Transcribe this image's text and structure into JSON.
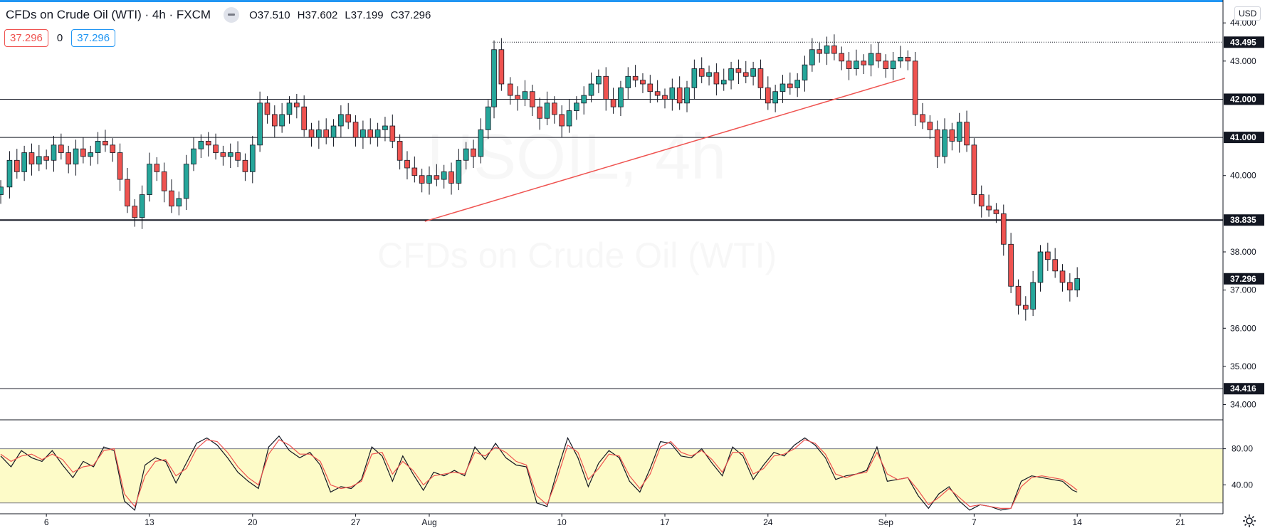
{
  "header": {
    "symbol": "CFDs on Crude Oil (WTI) · 4h · FXCM",
    "open_label": "O",
    "open": "37.510",
    "high_label": "H",
    "high": "37.602",
    "low_label": "L",
    "low": "37.199",
    "close_label": "C",
    "close": "37.296"
  },
  "trade": {
    "sell_price": "37.296",
    "spread": "0",
    "buy_price": "37.296"
  },
  "currency_button": "USD",
  "watermark": {
    "symbol": "USOIL, 4h",
    "description": "CFDs on Crude Oil (WTI)"
  },
  "colors": {
    "up": "#26a69a",
    "down": "#ef5350",
    "wick": "#131722",
    "trendline": "#ef5350",
    "stoch_k": "#131722",
    "stoch_d": "#ef5350",
    "stoch_band": "#fdfbc8",
    "accent": "#2196f3"
  },
  "chart_data": [
    {
      "type": "candlestick",
      "timeframe": "4h",
      "y_range": [
        33.6,
        44.6
      ],
      "y_ticks": [
        "44.000",
        "43.000",
        "40.000",
        "38.000",
        "37.000",
        "36.000",
        "35.000",
        "34.000"
      ],
      "x_ticks": [
        {
          "label": "6",
          "x": 6
        },
        {
          "label": "13",
          "x": 13
        },
        {
          "label": "20",
          "x": 20
        },
        {
          "label": "27",
          "x": 27
        },
        {
          "label": "Aug",
          "x": 32
        },
        {
          "label": "10",
          "x": 41
        },
        {
          "label": "17",
          "x": 48
        },
        {
          "label": "24",
          "x": 55
        },
        {
          "label": "Sep",
          "x": 63
        },
        {
          "label": "7",
          "x": 69
        },
        {
          "label": "14",
          "x": 76
        },
        {
          "label": "21",
          "x": 83
        }
      ],
      "x_range": [
        2.85,
        85.9
      ],
      "horizontal_levels": [
        {
          "value": 42.0,
          "label": "42.000",
          "style": "solid"
        },
        {
          "value": 41.0,
          "label": "41.000",
          "style": "solid"
        },
        {
          "value": 38.835,
          "label": "38.835",
          "style": "solid"
        },
        {
          "value": 34.416,
          "label": "34.416",
          "style": "solid"
        },
        {
          "value": 43.495,
          "label": "43.495",
          "style": "dotted",
          "from_x": 36.3
        }
      ],
      "last_price": {
        "value": 37.296,
        "label": "37.296"
      },
      "trendline": {
        "from": [
          31.7,
          38.8
        ],
        "to": [
          64.3,
          42.55
        ]
      },
      "key_points": [
        [
          2.9,
          39.7
        ],
        [
          3.5,
          40.4
        ],
        [
          4.0,
          40.1
        ],
        [
          4.5,
          40.6
        ],
        [
          5.0,
          40.3
        ],
        [
          5.5,
          40.5
        ],
        [
          6.0,
          40.4
        ],
        [
          6.5,
          40.8
        ],
        [
          7.0,
          40.6
        ],
        [
          7.5,
          40.3
        ],
        [
          8.0,
          40.7
        ],
        [
          8.5,
          40.5
        ],
        [
          9.0,
          40.6
        ],
        [
          9.5,
          40.9
        ],
        [
          10.0,
          40.8
        ],
        [
          10.5,
          40.6
        ],
        [
          11.0,
          39.9
        ],
        [
          11.5,
          39.2
        ],
        [
          12.0,
          38.9
        ],
        [
          12.5,
          39.5
        ],
        [
          13.0,
          40.3
        ],
        [
          13.5,
          40.1
        ],
        [
          14.0,
          39.6
        ],
        [
          14.5,
          39.2
        ],
        [
          15.0,
          39.4
        ],
        [
          15.5,
          40.3
        ],
        [
          16.0,
          40.7
        ],
        [
          16.5,
          40.9
        ],
        [
          17.0,
          40.8
        ],
        [
          17.5,
          40.6
        ],
        [
          18.0,
          40.5
        ],
        [
          18.5,
          40.6
        ],
        [
          19.0,
          40.4
        ],
        [
          19.5,
          40.1
        ],
        [
          20.0,
          40.8
        ],
        [
          20.5,
          41.9
        ],
        [
          21.0,
          41.6
        ],
        [
          21.5,
          41.3
        ],
        [
          22.0,
          41.6
        ],
        [
          22.5,
          41.9
        ],
        [
          23.0,
          41.8
        ],
        [
          23.5,
          41.2
        ],
        [
          24.0,
          41.0
        ],
        [
          24.5,
          41.2
        ],
        [
          25.0,
          41.0
        ],
        [
          25.5,
          41.3
        ],
        [
          26.0,
          41.6
        ],
        [
          26.5,
          41.4
        ],
        [
          27.0,
          41.0
        ],
        [
          27.5,
          41.2
        ],
        [
          28.0,
          41.0
        ],
        [
          28.5,
          41.2
        ],
        [
          29.0,
          41.3
        ],
        [
          29.5,
          40.9
        ],
        [
          30.0,
          40.4
        ],
        [
          30.5,
          40.2
        ],
        [
          31.0,
          40.0
        ],
        [
          31.5,
          39.8
        ],
        [
          32.0,
          40.0
        ],
        [
          32.5,
          39.9
        ],
        [
          33.0,
          40.1
        ],
        [
          33.5,
          39.8
        ],
        [
          34.0,
          40.4
        ],
        [
          34.5,
          40.7
        ],
        [
          35.0,
          40.5
        ],
        [
          35.5,
          41.2
        ],
        [
          36.0,
          41.8
        ],
        [
          36.4,
          43.3
        ],
        [
          36.9,
          42.4
        ],
        [
          37.5,
          42.1
        ],
        [
          38.0,
          42.0
        ],
        [
          38.5,
          42.2
        ],
        [
          39.0,
          41.8
        ],
        [
          39.5,
          41.5
        ],
        [
          40.0,
          41.9
        ],
        [
          40.5,
          41.6
        ],
        [
          41.0,
          41.3
        ],
        [
          41.5,
          41.7
        ],
        [
          42.0,
          41.9
        ],
        [
          42.5,
          42.1
        ],
        [
          43.0,
          42.4
        ],
        [
          43.5,
          42.6
        ],
        [
          44.0,
          42.0
        ],
        [
          44.5,
          41.8
        ],
        [
          45.0,
          42.3
        ],
        [
          45.5,
          42.6
        ],
        [
          46.0,
          42.5
        ],
        [
          46.5,
          42.4
        ],
        [
          47.0,
          42.2
        ],
        [
          47.5,
          42.1
        ],
        [
          48.0,
          42.0
        ],
        [
          48.5,
          42.3
        ],
        [
          49.0,
          41.9
        ],
        [
          49.5,
          42.3
        ],
        [
          50.0,
          42.8
        ],
        [
          50.5,
          42.6
        ],
        [
          51.0,
          42.7
        ],
        [
          51.5,
          42.4
        ],
        [
          52.0,
          42.5
        ],
        [
          52.5,
          42.8
        ],
        [
          53.0,
          42.7
        ],
        [
          53.5,
          42.6
        ],
        [
          54.0,
          42.8
        ],
        [
          54.5,
          42.3
        ],
        [
          55.0,
          41.9
        ],
        [
          55.5,
          42.2
        ],
        [
          56.0,
          42.4
        ],
        [
          56.5,
          42.3
        ],
        [
          57.0,
          42.5
        ],
        [
          57.5,
          42.9
        ],
        [
          58.0,
          43.3
        ],
        [
          58.5,
          43.2
        ],
        [
          59.0,
          43.4
        ],
        [
          59.5,
          43.2
        ],
        [
          60.0,
          43.0
        ],
        [
          60.5,
          42.8
        ],
        [
          61.0,
          43.0
        ],
        [
          61.5,
          42.9
        ],
        [
          62.0,
          43.2
        ],
        [
          62.5,
          43.0
        ],
        [
          63.0,
          42.8
        ],
        [
          63.5,
          43.0
        ],
        [
          64.0,
          43.1
        ],
        [
          64.5,
          43.0
        ],
        [
          65.0,
          41.6
        ],
        [
          65.5,
          41.4
        ],
        [
          66.0,
          41.2
        ],
        [
          66.5,
          40.5
        ],
        [
          67.0,
          41.2
        ],
        [
          67.5,
          40.9
        ],
        [
          68.0,
          41.4
        ],
        [
          68.5,
          40.8
        ],
        [
          69.0,
          39.5
        ],
        [
          69.5,
          39.2
        ],
        [
          70.0,
          39.1
        ],
        [
          70.5,
          39.0
        ],
        [
          71.0,
          38.2
        ],
        [
          71.5,
          37.1
        ],
        [
          72.0,
          36.6
        ],
        [
          72.5,
          36.5
        ],
        [
          73.0,
          37.2
        ],
        [
          73.5,
          38.0
        ],
        [
          74.0,
          37.8
        ],
        [
          74.5,
          37.5
        ],
        [
          75.0,
          37.2
        ],
        [
          75.5,
          37.0
        ],
        [
          76.0,
          37.3
        ]
      ]
    },
    {
      "type": "line",
      "title": "",
      "y_range": [
        8,
        112
      ],
      "band": [
        20,
        80
      ],
      "y_ticks": [
        "80.00",
        "40.00"
      ],
      "series": [
        {
          "values_x": [
            2.9,
            3.6,
            4.3,
            5.0,
            5.7,
            6.4,
            7.1,
            7.8,
            8.5,
            9.2,
            9.9,
            10.6,
            11.3,
            12.0,
            12.7,
            13.4,
            14.1,
            14.8,
            15.5,
            16.2,
            16.9,
            17.6,
            18.3,
            19.0,
            19.7,
            20.4,
            21.1,
            21.8,
            22.5,
            23.2,
            23.9,
            24.6,
            25.3,
            26.0,
            26.7,
            27.4,
            28.1,
            28.8,
            29.5,
            30.2,
            30.9,
            31.6,
            32.3,
            33.0,
            33.7,
            34.4,
            35.1,
            35.8,
            36.5,
            37.2,
            37.9,
            38.6,
            39.3,
            40.0,
            40.7,
            41.4,
            42.1,
            42.8,
            43.5,
            44.2,
            44.9,
            45.6,
            46.3,
            47.0,
            47.7,
            48.4,
            49.1,
            49.8,
            50.5,
            51.2,
            51.9,
            52.6,
            53.3,
            54.0,
            54.7,
            55.4,
            56.1,
            56.8,
            57.5,
            58.2,
            58.9,
            59.6,
            60.3,
            61.0,
            61.7,
            62.4,
            63.1,
            63.8,
            64.5,
            65.2,
            65.9,
            66.6,
            67.3,
            68.0,
            68.7,
            69.4,
            70.1,
            70.8,
            71.5,
            72.2,
            72.9,
            73.6,
            74.3,
            75.0,
            75.7,
            76.0
          ],
          "name": "",
          "color": "#131722",
          "values": [
            72,
            60,
            78,
            70,
            66,
            78,
            62,
            48,
            66,
            60,
            82,
            78,
            22,
            12,
            62,
            70,
            66,
            42,
            64,
            86,
            92,
            84,
            70,
            54,
            44,
            36,
            82,
            94,
            78,
            70,
            76,
            62,
            32,
            38,
            36,
            46,
            82,
            72,
            44,
            72,
            52,
            34,
            54,
            50,
            56,
            50,
            82,
            68,
            86,
            70,
            62,
            60,
            20,
            16,
            56,
            92,
            70,
            38,
            64,
            78,
            70,
            44,
            32,
            58,
            88,
            86,
            72,
            70,
            80,
            64,
            50,
            82,
            72,
            46,
            62,
            76,
            72,
            84,
            92,
            84,
            70,
            46,
            50,
            52,
            56,
            82,
            44,
            46,
            48,
            28,
            14,
            30,
            38,
            22,
            12,
            18,
            16,
            12,
            14,
            44,
            50,
            48,
            46,
            44,
            34,
            32
          ]
        },
        {
          "name": "",
          "color": "#ef5350",
          "values": [
            74,
            66,
            72,
            74,
            68,
            74,
            68,
            54,
            60,
            62,
            78,
            80,
            30,
            16,
            50,
            66,
            68,
            50,
            58,
            80,
            90,
            88,
            76,
            60,
            48,
            40,
            74,
            90,
            84,
            74,
            74,
            66,
            40,
            36,
            38,
            44,
            74,
            76,
            52,
            66,
            56,
            40,
            50,
            52,
            54,
            52,
            76,
            72,
            82,
            76,
            66,
            62,
            28,
            18,
            48,
            84,
            76,
            46,
            58,
            74,
            72,
            50,
            36,
            52,
            82,
            88,
            76,
            72,
            78,
            68,
            54,
            76,
            76,
            52,
            58,
            72,
            74,
            80,
            90,
            86,
            74,
            52,
            48,
            52,
            54,
            76,
            52,
            46,
            48,
            34,
            18,
            26,
            36,
            26,
            16,
            18,
            16,
            14,
            14,
            38,
            48,
            50,
            48,
            46,
            38,
            34
          ]
        }
      ]
    }
  ]
}
